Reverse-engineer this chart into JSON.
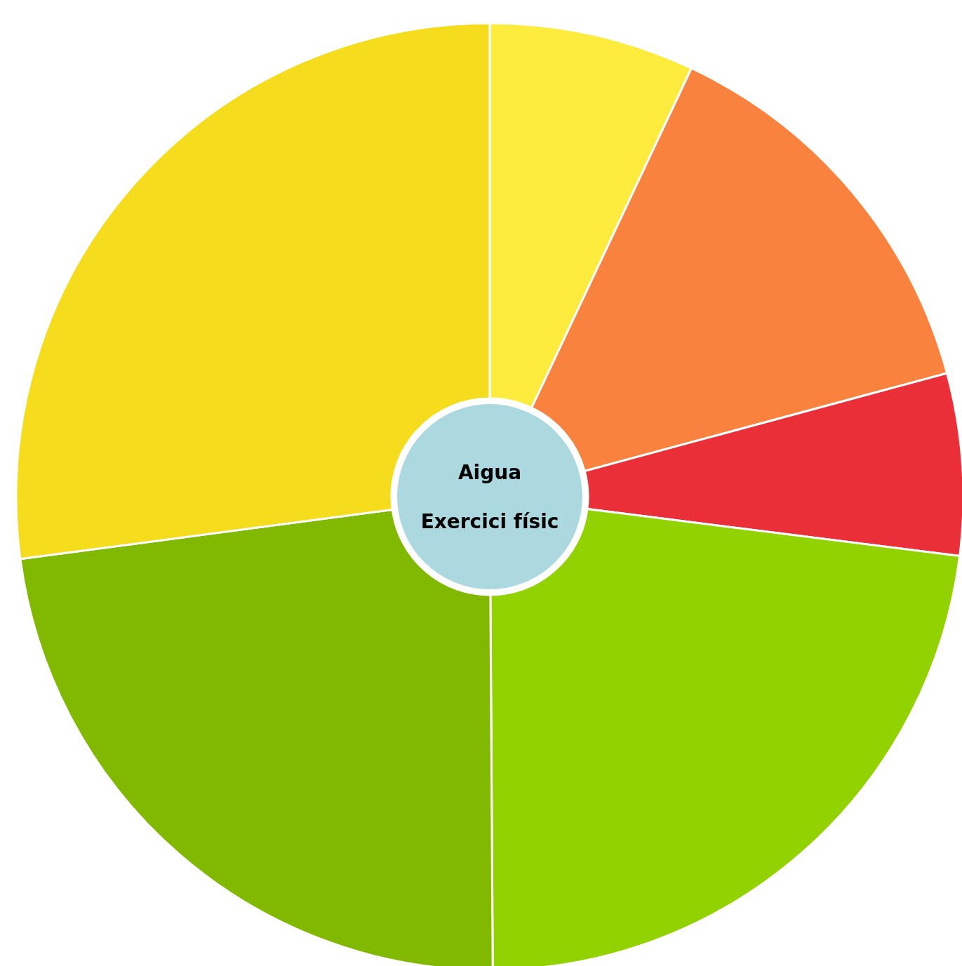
{
  "chart_data": {
    "type": "donut",
    "categories": [
      null,
      null,
      null,
      null,
      null,
      null
    ],
    "values": [
      7.0,
      13.8,
      6.2,
      22.9,
      23.0,
      27.1
    ],
    "colors": [
      "#fdec3d",
      "#f9823e",
      "#eb2f39",
      "#92d200",
      "#80b900",
      "#f5dc1c"
    ],
    "annotations": [
      "Aigua",
      "Exercici físic"
    ]
  }
}
